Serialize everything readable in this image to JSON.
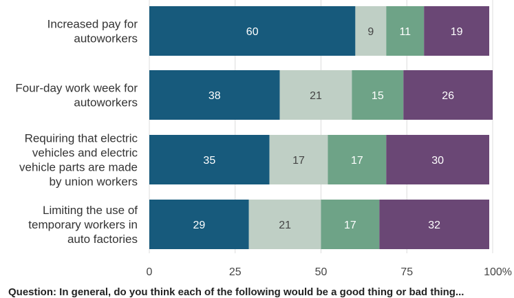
{
  "chart_data": {
    "type": "bar",
    "orientation": "horizontal",
    "stacked": true,
    "categories": [
      [
        "Increased pay for",
        "autoworkers"
      ],
      [
        "Four-day work week for",
        "autoworkers"
      ],
      [
        "Requiring that electric",
        "vehicles and electric",
        "vehicle parts are made",
        "by union workers"
      ],
      [
        "Limiting the use of",
        "temporary workers in",
        "auto factories"
      ]
    ],
    "series": [
      {
        "values": [
          60,
          38,
          35,
          29
        ],
        "color": "#175a7c",
        "label_color": "#ffffff"
      },
      {
        "values": [
          9,
          21,
          17,
          21
        ],
        "color": "#bfcfc5",
        "label_color": "#444444"
      },
      {
        "values": [
          11,
          15,
          17,
          17
        ],
        "color": "#6ea387",
        "label_color": "#ffffff"
      },
      {
        "values": [
          19,
          26,
          30,
          32
        ],
        "color": "#6a4775",
        "label_color": "#ffffff"
      }
    ],
    "xlim": [
      0,
      100
    ],
    "xticks": [
      "0",
      "25",
      "50",
      "75",
      "100%"
    ],
    "grid": "vertical",
    "title": "",
    "xlabel": "",
    "ylabel": ""
  },
  "footer_note": "Question: In general, do you think each of the following would be a good thing or bad thing..."
}
